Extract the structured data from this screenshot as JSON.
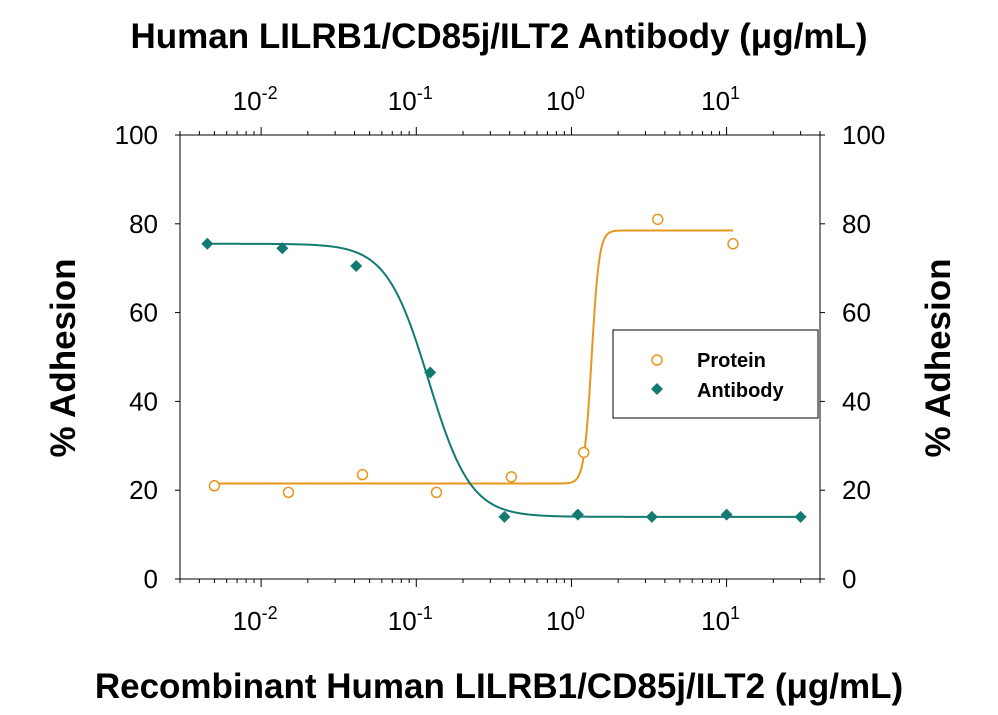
{
  "chart_data": {
    "type": "scatter",
    "top_title": "Human LILRB1/CD85j/ILT2  Antibody (μg/mL)",
    "xlabel": "Recombinant Human LILRB1/CD85j/ILT2 (μg/mL)",
    "ylabel_left": "% Adhesion",
    "ylabel_right": "% Adhesion",
    "x_scale": "log",
    "xlim": [
      0.003,
      40
    ],
    "ylim": [
      0,
      100
    ],
    "y_ticks": [
      "0",
      "20",
      "40",
      "60",
      "80",
      "100"
    ],
    "x_ticks": [
      {
        "base": "10",
        "exp": "-2"
      },
      {
        "base": "10",
        "exp": "-1"
      },
      {
        "base": "10",
        "exp": "0"
      },
      {
        "base": "10",
        "exp": "1"
      }
    ],
    "legend_position": "right",
    "series": [
      {
        "name": "Protein",
        "marker": "open-circle",
        "color": "#E8961E",
        "x": [
          0.005,
          0.015,
          0.045,
          0.135,
          0.41,
          1.2,
          3.6,
          11
        ],
        "y": [
          21,
          19.5,
          23.5,
          19.5,
          23,
          28.5,
          81,
          75.5
        ],
        "fit": {
          "bottom": 21.5,
          "top": 78.5,
          "ec50": 1.35,
          "hill": 18
        }
      },
      {
        "name": "Antibody",
        "marker": "filled-diamond",
        "color": "#137A72",
        "x": [
          0.0045,
          0.0137,
          0.041,
          0.123,
          0.37,
          1.1,
          3.3,
          10,
          30
        ],
        "y": [
          75.5,
          74.5,
          70.5,
          46.5,
          14,
          14.5,
          14,
          14.5,
          14
        ],
        "fit": {
          "bottom": 14,
          "top": 75.5,
          "ec50": 0.12,
          "hill": 3.2
        }
      }
    ]
  }
}
